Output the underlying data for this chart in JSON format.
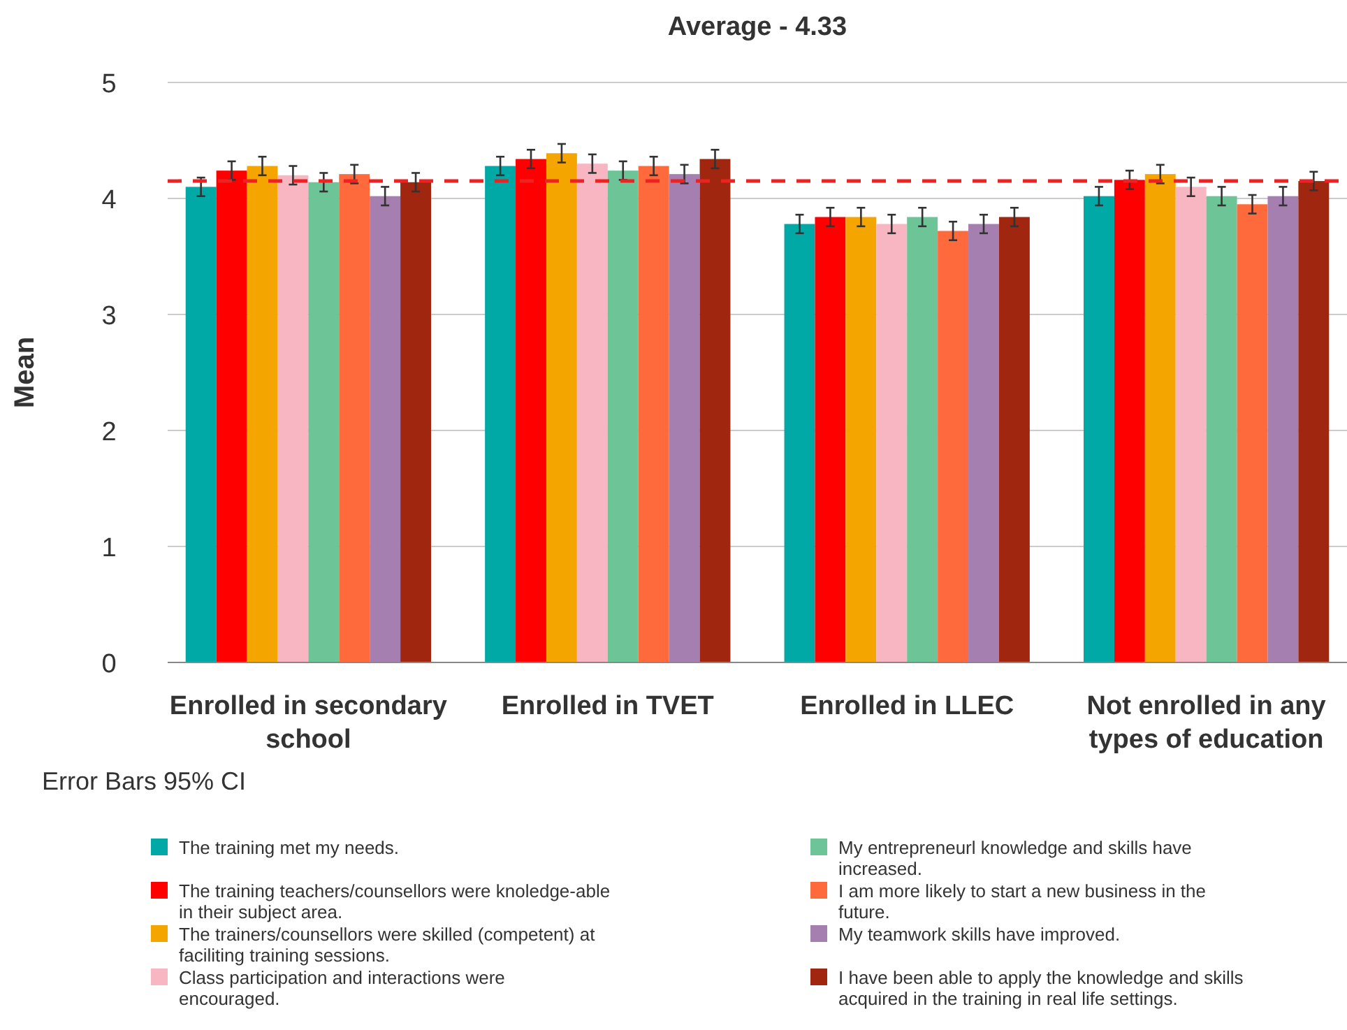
{
  "chart_data": {
    "type": "bar",
    "title": "Average - 4.33",
    "ylabel": "Mean",
    "categories": [
      "Enrolled in secondary school",
      "Enrolled in TVET",
      "Enrolled in LLEC",
      "Not enrolled in any types of education"
    ],
    "ylim": [
      0,
      5
    ],
    "yticks": [
      0,
      1,
      2,
      3,
      4,
      5
    ],
    "grid": "y",
    "legend": "bottom",
    "series": [
      {
        "name": "The training met my needs.",
        "color": "#00a9a5",
        "values": [
          4.1,
          4.28,
          3.78,
          4.02
        ],
        "errors": [
          0.08,
          0.08,
          0.08,
          0.08
        ]
      },
      {
        "name": "The training teachers/counsellors were knoledge-able in their subject area.",
        "color": "#ff0000",
        "values": [
          4.24,
          4.34,
          3.84,
          4.16
        ],
        "errors": [
          0.08,
          0.08,
          0.08,
          0.08
        ]
      },
      {
        "name": "The trainers/counsellors were skilled (competent) at faciliting training sessions.",
        "color": "#f5a500",
        "values": [
          4.28,
          4.39,
          3.84,
          4.21
        ],
        "errors": [
          0.08,
          0.08,
          0.08,
          0.08
        ]
      },
      {
        "name": "Class participation and interactions were encouraged.",
        "color": "#f7b6c2",
        "values": [
          4.2,
          4.3,
          3.78,
          4.1
        ],
        "errors": [
          0.08,
          0.08,
          0.08,
          0.08
        ]
      },
      {
        "name": "My entrepreneurl knowledge and skills have increased.",
        "color": "#6cc497",
        "values": [
          4.14,
          4.24,
          3.84,
          4.02
        ],
        "errors": [
          0.08,
          0.08,
          0.08,
          0.08
        ]
      },
      {
        "name": "I am more likely to start a new business in the future.",
        "color": "#ff6a3d",
        "values": [
          4.21,
          4.28,
          3.72,
          3.95
        ],
        "errors": [
          0.08,
          0.08,
          0.08,
          0.08
        ]
      },
      {
        "name": "My teamwork skills have improved.",
        "color": "#a57fb0",
        "values": [
          4.02,
          4.21,
          3.78,
          4.02
        ],
        "errors": [
          0.08,
          0.08,
          0.08,
          0.08
        ]
      },
      {
        "name": "I have been able to apply the knowledge and skills acquired in the training in real life settings.",
        "color": "#a0260f",
        "values": [
          4.14,
          4.34,
          3.84,
          4.15
        ],
        "errors": [
          0.08,
          0.08,
          0.08,
          0.08
        ]
      }
    ],
    "ref_lines": [
      {
        "axis": "y",
        "value": 4.15,
        "color": "#ee2222",
        "line_style": "dashed"
      }
    ],
    "annotations": [
      "Error Bars 95% CI"
    ]
  }
}
